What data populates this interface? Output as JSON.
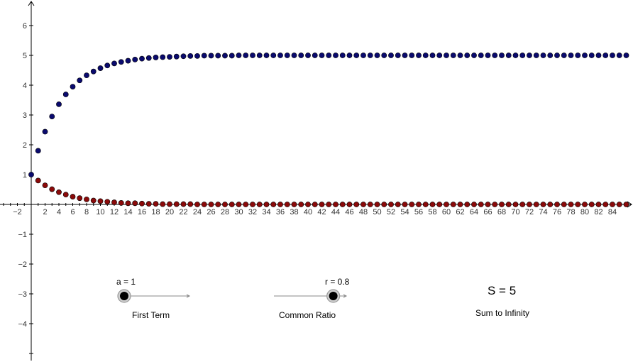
{
  "chart_data": {
    "type": "scatter",
    "title": "",
    "xlabel": "",
    "ylabel": "",
    "xlim": [
      -2.5,
      87
    ],
    "ylim": [
      -5.1,
      6.7
    ],
    "x_ticks": [
      -2,
      2,
      4,
      6,
      8,
      10,
      12,
      14,
      16,
      18,
      20,
      22,
      24,
      26,
      28,
      30,
      32,
      34,
      36,
      38,
      40,
      42,
      44,
      46,
      48,
      50,
      52,
      54,
      56,
      58,
      60,
      62,
      64,
      66,
      68,
      70,
      72,
      74,
      76,
      78,
      80,
      82,
      84
    ],
    "y_ticks": [
      -4,
      -3,
      -2,
      -1,
      1,
      2,
      3,
      4,
      5,
      6
    ],
    "grid": false,
    "series": [
      {
        "color": "#0a0a6e",
        "x": [
          0,
          1,
          2,
          3,
          4,
          5,
          6,
          7,
          8,
          9,
          10,
          11,
          12,
          13,
          14,
          15,
          16,
          17,
          18,
          19,
          20,
          21,
          22,
          23,
          24,
          25,
          26,
          27,
          28,
          29,
          30,
          31,
          32,
          33,
          34,
          35,
          36,
          37,
          38,
          39,
          40,
          41,
          42,
          43,
          44,
          45,
          46,
          47,
          48,
          49,
          50,
          51,
          52,
          53,
          54,
          55,
          56,
          57,
          58,
          59,
          60,
          61,
          62,
          63,
          64,
          65,
          66,
          67,
          68,
          69,
          70,
          71,
          72,
          73,
          74,
          75,
          76,
          77,
          78,
          79,
          80,
          81,
          82,
          83,
          84,
          85,
          86
        ],
        "y": [
          1,
          1.8,
          2.44,
          2.95,
          3.36,
          3.69,
          3.95,
          4.16,
          4.33,
          4.46,
          4.57,
          4.66,
          4.73,
          4.78,
          4.82,
          4.86,
          4.89,
          4.91,
          4.93,
          4.94,
          4.95,
          4.96,
          4.97,
          4.98,
          4.98,
          4.99,
          4.99,
          4.99,
          4.99,
          4.99,
          5,
          5,
          5,
          5,
          5,
          5,
          5,
          5,
          5,
          5,
          5,
          5,
          5,
          5,
          5,
          5,
          5,
          5,
          5,
          5,
          5,
          5,
          5,
          5,
          5,
          5,
          5,
          5,
          5,
          5,
          5,
          5,
          5,
          5,
          5,
          5,
          5,
          5,
          5,
          5,
          5,
          5,
          5,
          5,
          5,
          5,
          5,
          5,
          5,
          5,
          5,
          5,
          5,
          5,
          5,
          5,
          5
        ]
      },
      {
        "color": "#8b0a0a",
        "x": [
          1,
          2,
          3,
          4,
          5,
          6,
          7,
          8,
          9,
          10,
          11,
          12,
          13,
          14,
          15,
          16,
          17,
          18,
          19,
          20,
          21,
          22,
          23,
          24,
          25,
          26,
          27,
          28,
          29,
          30,
          31,
          32,
          33,
          34,
          35,
          36,
          37,
          38,
          39,
          40,
          41,
          42,
          43,
          44,
          45,
          46,
          47,
          48,
          49,
          50,
          51,
          52,
          53,
          54,
          55,
          56,
          57,
          58,
          59,
          60,
          61,
          62,
          63,
          64,
          65,
          66,
          67,
          68,
          69,
          70,
          71,
          72,
          73,
          74,
          75,
          76,
          77,
          78,
          79,
          80,
          81,
          82,
          83,
          84,
          85,
          86
        ],
        "y": [
          0.8,
          0.64,
          0.51,
          0.41,
          0.33,
          0.26,
          0.21,
          0.17,
          0.13,
          0.11,
          0.09,
          0.07,
          0.05,
          0.04,
          0.04,
          0.03,
          0.02,
          0.02,
          0.01,
          0.01,
          0.01,
          0.01,
          0.01,
          0,
          0,
          0,
          0,
          0,
          0,
          0,
          0,
          0,
          0,
          0,
          0,
          0,
          0,
          0,
          0,
          0,
          0,
          0,
          0,
          0,
          0,
          0,
          0,
          0,
          0,
          0,
          0,
          0,
          0,
          0,
          0,
          0,
          0,
          0,
          0,
          0,
          0,
          0,
          0,
          0,
          0,
          0,
          0,
          0,
          0,
          0,
          0,
          0,
          0,
          0,
          0,
          0,
          0,
          0,
          0,
          0,
          0,
          0,
          0,
          0,
          0,
          0
        ]
      }
    ]
  },
  "sliders": {
    "first_term": {
      "label": "a = 1",
      "caption": "First Term",
      "value": 1,
      "fraction": 0.0
    },
    "common_ratio": {
      "label": "r = 0.8",
      "caption": "Common Ratio",
      "value": 0.8,
      "fraction": 0.8
    }
  },
  "sum": {
    "value_text": "S = 5",
    "caption": "Sum to Infinity"
  },
  "colors": {
    "slider_knob": "#000000",
    "slider_ring": "#999999",
    "slider_line": "#888888"
  }
}
